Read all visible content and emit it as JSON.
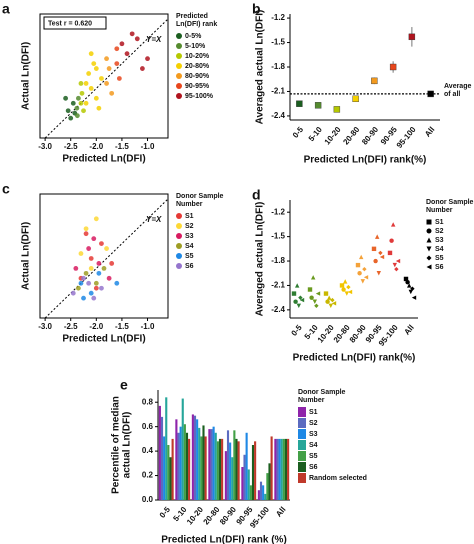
{
  "chart_data": [
    {
      "panel": "a",
      "type": "scatter",
      "xlabel": "Predicted Ln(DFI)",
      "ylabel": "Actual Ln(DFI)",
      "xlim": [
        -3.1,
        -0.6
      ],
      "ylim": [
        -3.0,
        -0.5
      ],
      "xticks": [
        {
          "value": -3.0,
          "label": "-3.0"
        },
        -2.5,
        {
          "value": -2.0,
          "label": "-2.0"
        },
        -1.5,
        {
          "value": -1.0,
          "label": "-1.0"
        }
      ],
      "annotation": "Test r = 0.620",
      "diagonal_label": "Y=X",
      "box": true,
      "legend_title": [
        "Predicted",
        "Ln(DFI) rank"
      ],
      "series": [
        {
          "name": "0-5%",
          "color": "#1b5e20",
          "x": [
            -2.55,
            -2.5,
            -2.45,
            -2.6,
            -2.42
          ],
          "values": [
            -2.45,
            -2.6,
            -2.3,
            -2.2,
            -2.5
          ]
        },
        {
          "name": "5-10%",
          "color": "#558b2f",
          "x": [
            -2.38,
            -2.35,
            -2.37
          ],
          "values": [
            -2.4,
            -2.2,
            -2.55
          ]
        },
        {
          "name": "10-20%",
          "color": "#b5c800",
          "x": [
            -2.3,
            -2.28,
            -2.25,
            -2.3
          ],
          "values": [
            -2.3,
            -2.1,
            -2.45,
            -1.9
          ]
        },
        {
          "name": "20-80%",
          "color": "#f5d000",
          "x": [
            -2.2,
            -2.1,
            -2.0,
            -2.15,
            -2.05,
            -1.95,
            -2.1,
            -2.2,
            -1.9,
            -2.0
          ],
          "values": [
            -2.3,
            -2.0,
            -2.2,
            -1.7,
            -1.5,
            -2.4,
            -1.3,
            -1.9,
            -1.8,
            -1.6
          ]
        },
        {
          "name": "80-90%",
          "color": "#f39a1e",
          "x": [
            -1.8,
            -1.75,
            -1.7,
            -1.8
          ],
          "values": [
            -1.9,
            -1.6,
            -2.1,
            -1.4
          ]
        },
        {
          "name": "90-95%",
          "color": "#e8461c",
          "x": [
            -1.6,
            -1.55,
            -1.6
          ],
          "values": [
            -1.5,
            -1.8,
            -1.2
          ]
        },
        {
          "name": "95-100%",
          "color": "#b0141e",
          "x": [
            -1.4,
            -1.2,
            -1.0,
            -1.3,
            -1.1,
            -1.5
          ],
          "values": [
            -1.3,
            -1.0,
            -1.4,
            -0.9,
            -1.6,
            -1.1
          ]
        }
      ]
    },
    {
      "panel": "b",
      "type": "dot",
      "xlabel": "Predicted Ln(DFI) rank(%)",
      "ylabel": "Averaged actual Ln(DFI)",
      "categories": [
        "0-5",
        "5-10",
        "10-20",
        "20-80",
        "80-90",
        "90-95",
        "95-100",
        "All"
      ],
      "values": [
        -2.25,
        -2.27,
        -2.32,
        -2.19,
        -1.97,
        -1.8,
        -1.43,
        -2.13
      ],
      "errors": [
        0.03,
        0.03,
        0.02,
        0.01,
        0.04,
        0.07,
        0.12,
        0.0
      ],
      "colors": [
        "#1b5e20",
        "#558b2f",
        "#b5c800",
        "#f5d000",
        "#f39a1e",
        "#e8461c",
        "#b0141e",
        "#000000"
      ],
      "ylim": [
        -2.45,
        -1.15
      ],
      "yticks": [
        -2.4,
        -2.1,
        -1.8,
        -1.5,
        -1.2
      ],
      "reference": -2.13,
      "reference_label": [
        "Average",
        "of all"
      ]
    },
    {
      "panel": "c",
      "type": "scatter",
      "xlabel": "Predicted Ln(DFI)",
      "ylabel": "Actual Ln(DFI)",
      "xlim": [
        -3.1,
        -0.6
      ],
      "ylim": [
        -3.0,
        -0.5
      ],
      "xticks": [
        {
          "value": -3.0,
          "label": "-3.0"
        },
        -2.5,
        {
          "value": -2.0,
          "label": "-2.0"
        },
        -1.5,
        {
          "value": -1.0,
          "label": "-1.0"
        }
      ],
      "diagonal_label": "Y=X",
      "box": true,
      "legend_title": [
        "Donor Sample",
        "Number"
      ],
      "series": [
        {
          "name": "S1",
          "color": "#e53935",
          "x": [
            -2.3,
            -2.1,
            -1.9,
            -2.0,
            -1.7,
            -2.2
          ],
          "values": [
            -2.2,
            -1.8,
            -1.5,
            -2.4,
            -1.9,
            -1.3
          ]
        },
        {
          "name": "S2",
          "color": "#fdd835",
          "x": [
            -2.2,
            -2.0,
            -2.1,
            -1.8,
            -2.3
          ],
          "values": [
            -1.2,
            -1.0,
            -2.0,
            -1.6,
            -1.7
          ]
        },
        {
          "name": "S3",
          "color": "#d81b60",
          "x": [
            -2.4,
            -2.15,
            -1.95,
            -1.75,
            -2.05
          ],
          "values": [
            -2.0,
            -1.6,
            -1.9,
            -2.2,
            -1.4
          ]
        },
        {
          "name": "S4",
          "color": "#9e9d24",
          "x": [
            -2.35,
            -2.2,
            -2.0,
            -1.85
          ],
          "values": [
            -2.4,
            -2.1,
            -2.3,
            -2.0
          ]
        },
        {
          "name": "S5",
          "color": "#1e88e5",
          "x": [
            -2.3,
            -2.1,
            -1.95,
            -2.25,
            -1.6
          ],
          "values": [
            -2.3,
            -2.5,
            -2.1,
            -2.6,
            -2.3
          ]
        },
        {
          "name": "S6",
          "color": "#9575cd",
          "x": [
            -2.45,
            -2.25,
            -2.05,
            -1.9,
            -2.15
          ],
          "values": [
            -2.5,
            -2.2,
            -2.6,
            -2.4,
            -2.3
          ]
        }
      ]
    },
    {
      "panel": "d",
      "type": "strip",
      "xlabel": "Predicted Ln(DFI) rank(%)",
      "ylabel": "Averaged actual Ln(DFI)",
      "categories": [
        "0-5",
        "5-10",
        "10-20",
        "20-80",
        "80-90",
        "90-95",
        "95-100",
        "All"
      ],
      "category_colors": [
        "#2e7d32",
        "#6a9a1f",
        "#c9b800",
        "#f2c500",
        "#f4a23a",
        "#e8652a",
        "#e03a3a",
        "#000000"
      ],
      "ylim": [
        -2.5,
        -1.05
      ],
      "yticks": [
        -2.4,
        -2.1,
        -1.8,
        -1.5,
        -1.2
      ],
      "legend_title": [
        "Donor Sample",
        "Number"
      ],
      "series": [
        {
          "name": "S1",
          "marker": "square",
          "values": [
            -2.2,
            -2.15,
            -2.2,
            -2.1,
            -1.85,
            -1.65,
            -1.7,
            -2.02
          ]
        },
        {
          "name": "S2",
          "marker": "circle",
          "values": [
            -2.3,
            -2.25,
            -2.3,
            -2.15,
            -1.95,
            -1.8,
            -1.55,
            -2.06
          ]
        },
        {
          "name": "S3",
          "marker": "up",
          "values": [
            -2.1,
            -2.0,
            -2.25,
            -2.05,
            -1.75,
            -1.5,
            -1.35,
            -2.1
          ]
        },
        {
          "name": "S4",
          "marker": "down",
          "values": [
            -2.35,
            -2.3,
            -2.35,
            -2.2,
            -2.05,
            -1.95,
            -1.85,
            -2.18
          ]
        },
        {
          "name": "S5",
          "marker": "diamond",
          "values": [
            -2.25,
            -2.35,
            -2.28,
            -2.12,
            -1.9,
            -1.7,
            -1.9,
            -2.14
          ]
        },
        {
          "name": "S6",
          "marker": "left",
          "values": [
            -2.28,
            -2.2,
            -2.32,
            -2.18,
            -2.0,
            -1.75,
            -1.8,
            -2.25
          ]
        }
      ]
    },
    {
      "panel": "e",
      "type": "bar",
      "xlabel": "Predicted Ln(DFI) rank (%)",
      "ylabel": [
        "Percentile of median",
        "actual Ln(DFI)"
      ],
      "categories": [
        "0-5",
        "5-10",
        "10-20",
        "20-80",
        "80-90",
        "90-95",
        "95-100",
        "All"
      ],
      "ylim": [
        0,
        0.9
      ],
      "yticks": [
        {
          "value": 0,
          "label": "0.0"
        },
        0.2,
        0.4,
        0.6,
        0.8
      ],
      "legend_title": [
        "Donor Sample",
        "Number"
      ],
      "series": [
        {
          "name": "S1",
          "color": "#8e24aa",
          "values": [
            0.77,
            0.66,
            0.7,
            0.58,
            0.4,
            0.27,
            0.08,
            0.5
          ]
        },
        {
          "name": "S2",
          "color": "#5c6bc0",
          "values": [
            0.68,
            0.55,
            0.69,
            0.58,
            0.57,
            0.37,
            0.15,
            0.5
          ]
        },
        {
          "name": "S3",
          "color": "#1e88e5",
          "values": [
            0.52,
            0.6,
            0.66,
            0.6,
            0.47,
            0.55,
            0.12,
            0.5
          ]
        },
        {
          "name": "S4",
          "color": "#26a69a",
          "values": [
            0.84,
            0.83,
            0.59,
            0.55,
            0.35,
            0.25,
            0.05,
            0.5
          ]
        },
        {
          "name": "S5",
          "color": "#43a047",
          "values": [
            0.45,
            0.62,
            0.52,
            0.48,
            0.57,
            0.12,
            0.22,
            0.5
          ]
        },
        {
          "name": "S6",
          "color": "#1b5e20",
          "values": [
            0.35,
            0.55,
            0.61,
            0.5,
            0.5,
            0.45,
            0.3,
            0.5
          ]
        },
        {
          "name": "Random selected",
          "color": "#c0392b",
          "values": [
            0.5,
            0.5,
            0.52,
            0.5,
            0.48,
            0.48,
            0.52,
            0.5
          ]
        }
      ]
    }
  ]
}
